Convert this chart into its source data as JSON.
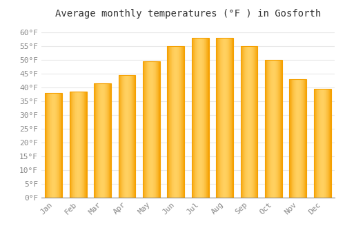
{
  "title": "Average monthly temperatures (°F ) in Gosforth",
  "months": [
    "Jan",
    "Feb",
    "Mar",
    "Apr",
    "May",
    "Jun",
    "Jul",
    "Aug",
    "Sep",
    "Oct",
    "Nov",
    "Dec"
  ],
  "values": [
    38,
    38.5,
    41.5,
    44.5,
    49.5,
    55,
    58,
    58,
    55,
    50,
    43,
    39.5
  ],
  "bar_color_center": "#FFD060",
  "bar_color_edge": "#F5A000",
  "bar_color_main": "#FFC020",
  "ylim": [
    0,
    63
  ],
  "yticks": [
    0,
    5,
    10,
    15,
    20,
    25,
    30,
    35,
    40,
    45,
    50,
    55,
    60
  ],
  "background_color": "#FFFFFF",
  "grid_color": "#E8E8E8",
  "title_fontsize": 10,
  "tick_fontsize": 8,
  "bar_width": 0.7
}
